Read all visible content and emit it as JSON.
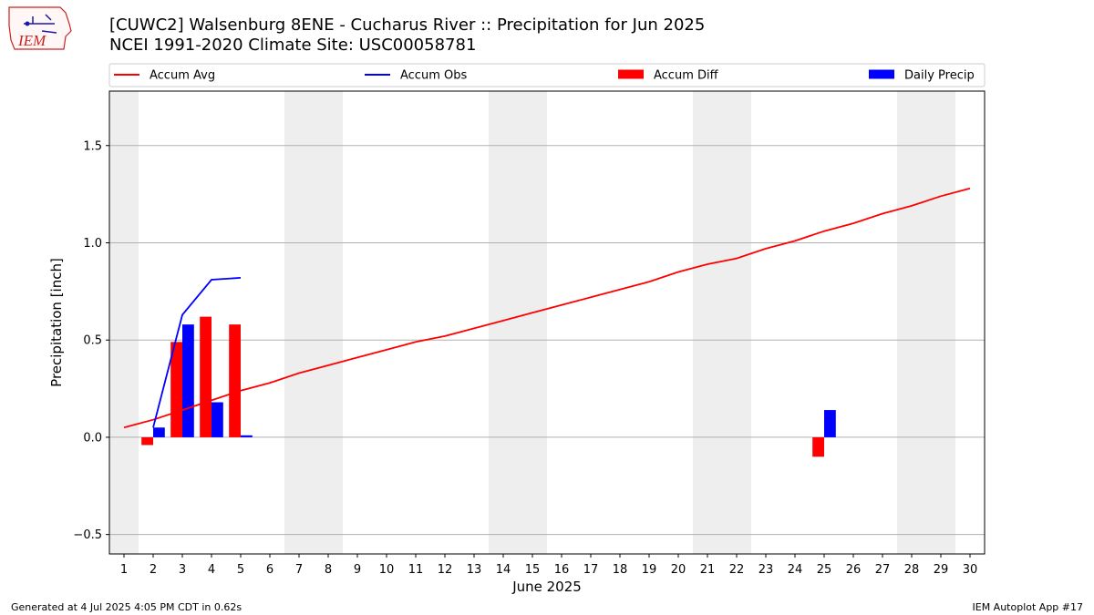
{
  "header": {
    "title_line1": "[CUWC2] Walsenburg 8ENE - Cucharus River :: Precipitation for Jun 2025",
    "title_line2": "NCEI 1991-2020 Climate Site: USC00058781"
  },
  "logo": {
    "text": "IEM",
    "icon": "iowa-state-map-logo"
  },
  "footer": {
    "left": "Generated at 4 Jul 2025 4:05 PM CDT in 0.62s",
    "right": "IEM Autoplot App #17"
  },
  "chart_data": {
    "type": "bar",
    "xlabel": "June 2025",
    "ylabel": "Precipitation [inch]",
    "xlim": [
      0.5,
      30.5
    ],
    "ylim": [
      -0.6,
      1.78
    ],
    "yticks": [
      -0.5,
      0.0,
      0.5,
      1.0,
      1.5
    ],
    "ytick_labels": [
      "−0.5",
      "0.0",
      "0.5",
      "1.0",
      "1.5"
    ],
    "x": [
      1,
      2,
      3,
      4,
      5,
      6,
      7,
      8,
      9,
      10,
      11,
      12,
      13,
      14,
      15,
      16,
      17,
      18,
      19,
      20,
      21,
      22,
      23,
      24,
      25,
      26,
      27,
      28,
      29,
      30
    ],
    "weekend_days": [
      1,
      7,
      8,
      14,
      15,
      21,
      22,
      28,
      29
    ],
    "grid": "horizontal",
    "legend_position": "top",
    "series": [
      {
        "name": "Accum Avg",
        "kind": "line",
        "color": "#ff0000",
        "values": [
          0.05,
          0.09,
          0.14,
          0.19,
          0.24,
          0.28,
          0.33,
          0.37,
          0.41,
          0.45,
          0.49,
          0.52,
          0.56,
          0.6,
          0.64,
          0.68,
          0.72,
          0.76,
          0.8,
          0.85,
          0.89,
          0.92,
          0.97,
          1.01,
          1.06,
          1.1,
          1.15,
          1.19,
          1.24,
          1.28
        ]
      },
      {
        "name": "Accum Obs",
        "kind": "line",
        "color": "#0000ff",
        "x": [
          2,
          3,
          4,
          5
        ],
        "values": [
          0.05,
          0.63,
          0.81,
          0.82
        ]
      },
      {
        "name": "Accum Diff",
        "kind": "bar",
        "color": "#ff0000",
        "offset": "left",
        "x": [
          2,
          3,
          4,
          5,
          25
        ],
        "values": [
          -0.04,
          0.49,
          0.62,
          0.58,
          -0.1
        ]
      },
      {
        "name": "Daily Precip",
        "kind": "bar",
        "color": "#0000ff",
        "offset": "right",
        "x": [
          2,
          3,
          4,
          5,
          25
        ],
        "values": [
          0.05,
          0.58,
          0.18,
          0.01,
          0.14
        ]
      }
    ]
  }
}
